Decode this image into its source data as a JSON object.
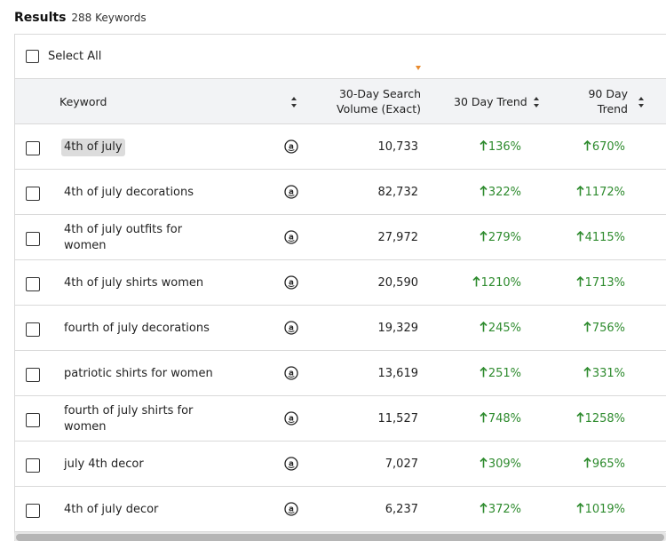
{
  "header": {
    "title": "Results",
    "count": "288 Keywords"
  },
  "select_all": {
    "label": "Select All"
  },
  "columns": {
    "keyword": "Keyword",
    "volume_line1": "30-Day Search",
    "volume_line2": "Volume (Exact)",
    "trend30": "30 Day Trend",
    "trend90_line1": "90 Day",
    "trend90_line2": "Trend"
  },
  "colors": {
    "trend_up": "#2e8b2e",
    "sort_active": "#e88a2d"
  },
  "icons": {
    "marketplace": "amazon-icon",
    "trend": "arrow-up-icon"
  },
  "rows": [
    {
      "keyword": "4th of july",
      "volume": "10,733",
      "trend30": "136%",
      "trend90": "670%",
      "highlighted": true
    },
    {
      "keyword": "4th of july decorations",
      "volume": "82,732",
      "trend30": "322%",
      "trend90": "1172%"
    },
    {
      "keyword": "4th of july outfits for women",
      "volume": "27,972",
      "trend30": "279%",
      "trend90": "4115%"
    },
    {
      "keyword": "4th of july shirts women",
      "volume": "20,590",
      "trend30": "1210%",
      "trend90": "1713%"
    },
    {
      "keyword": "fourth of july decorations",
      "volume": "19,329",
      "trend30": "245%",
      "trend90": "756%"
    },
    {
      "keyword": "patriotic shirts for women",
      "volume": "13,619",
      "trend30": "251%",
      "trend90": "331%"
    },
    {
      "keyword": "fourth of july shirts for women",
      "volume": "11,527",
      "trend30": "748%",
      "trend90": "1258%"
    },
    {
      "keyword": "july 4th decor",
      "volume": "7,027",
      "trend30": "309%",
      "trend90": "965%"
    },
    {
      "keyword": "4th of july decor",
      "volume": "6,237",
      "trend30": "372%",
      "trend90": "1019%"
    }
  ]
}
